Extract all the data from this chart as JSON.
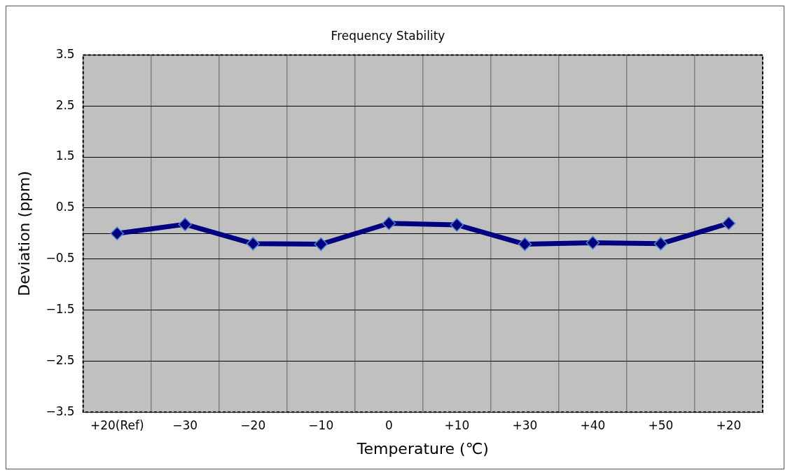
{
  "chart_data": {
    "type": "line",
    "title": "Frequency Stability",
    "xlabel": "Temperature (℃)",
    "ylabel": "Deviation (ppm)",
    "categories": [
      "+20(Ref)",
      "−30",
      "−20",
      "−10",
      "0",
      "+10",
      "+30",
      "+40",
      "+50",
      "+20"
    ],
    "series": [
      {
        "color": "#000080",
        "values": [
          0,
          0.18,
          -0.2,
          -0.21,
          0.2,
          0.17,
          -0.21,
          -0.18,
          -0.2,
          0.2
        ]
      }
    ],
    "ylim": [
      -3.5,
      3.5
    ],
    "yticks": [
      {
        "value": -3.5,
        "label": "−3.5"
      },
      {
        "value": -2.5,
        "label": "−2.5"
      },
      {
        "value": -1.5,
        "label": "−1.5"
      },
      {
        "value": -0.5,
        "label": "−0.5"
      },
      {
        "value": 0,
        "label": null
      },
      0.5,
      1.5,
      2.5,
      3.5
    ],
    "grid": true,
    "legend": false,
    "marker": "diamond",
    "line_style": "solid"
  }
}
